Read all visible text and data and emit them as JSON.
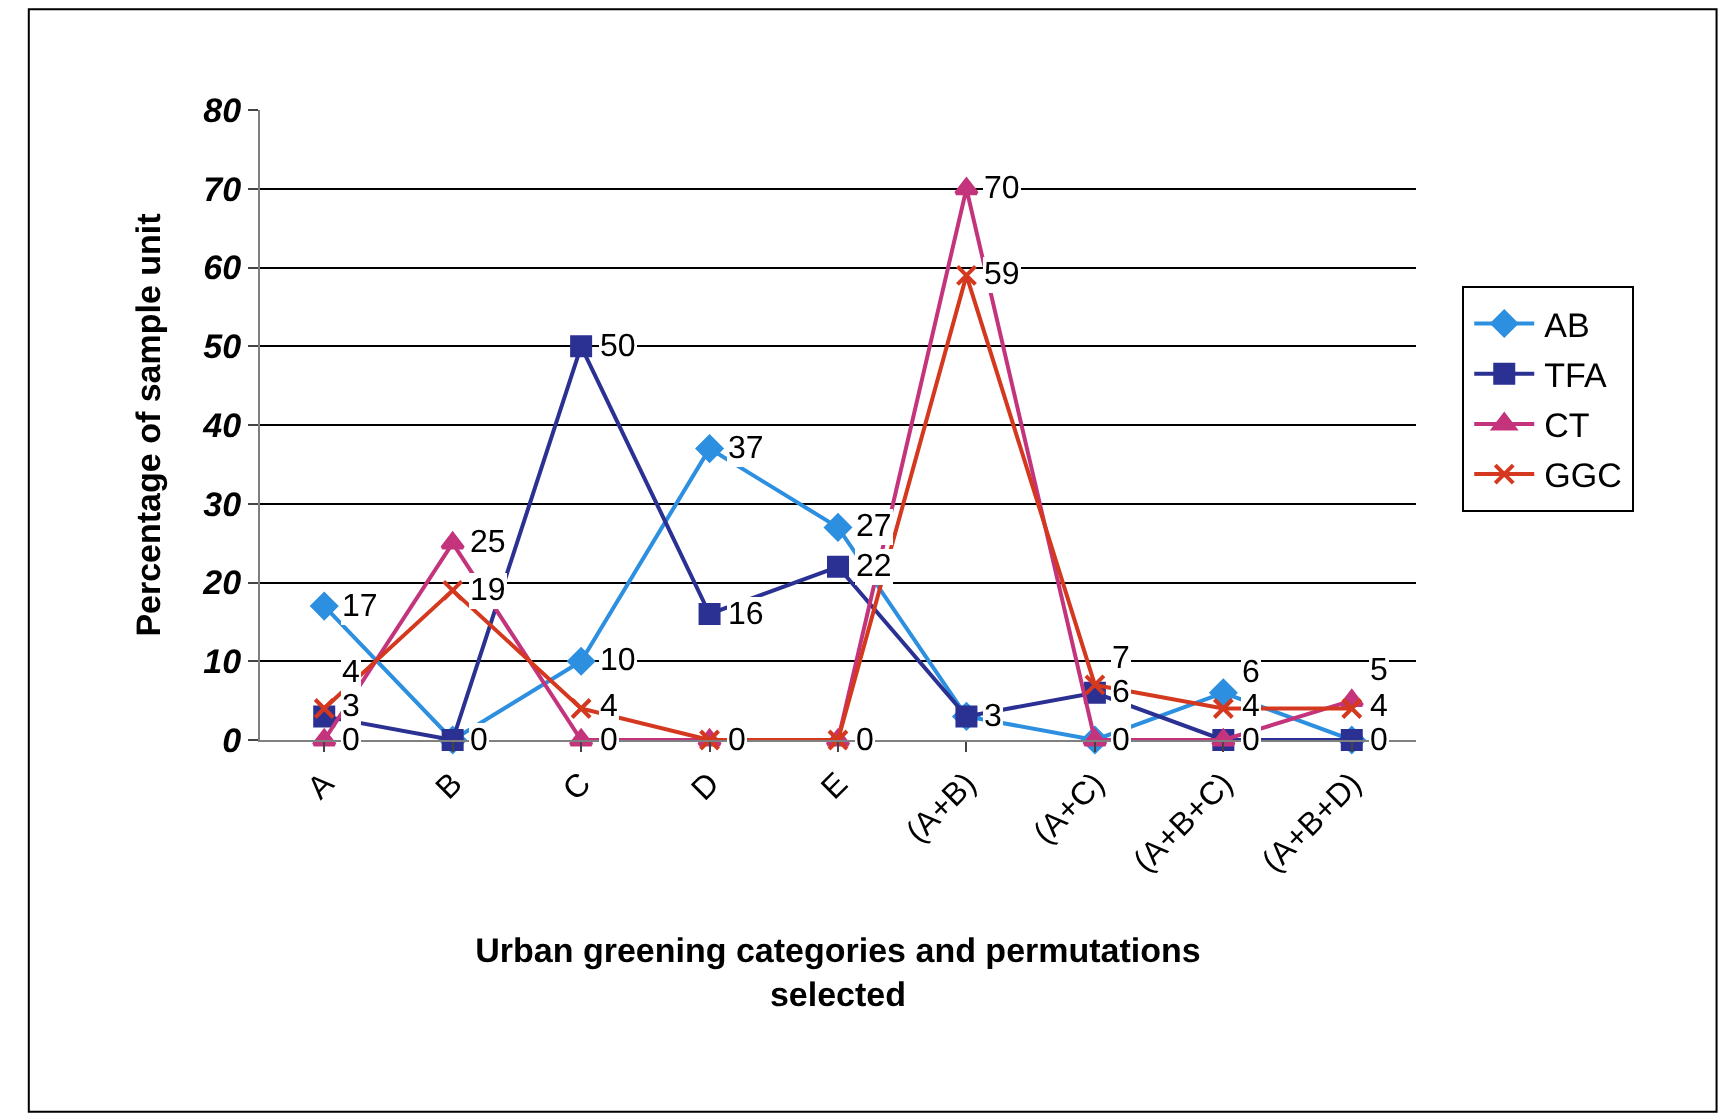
{
  "chart_data": {
    "type": "line",
    "xlabel": "Urban greening categories and permutations\nselected",
    "ylabel": "Percentage of sample unit",
    "categories": [
      "A",
      "B",
      "C",
      "D",
      "E",
      "(A+B)",
      "(A+C)",
      "(A+B+C)",
      "(A+B+D)"
    ],
    "series": [
      {
        "name": "AB",
        "color": "#2d8fe0",
        "marker": "diamond",
        "values": [
          17,
          0,
          10,
          37,
          27,
          3,
          0,
          6,
          0
        ],
        "value_labels": [
          "17",
          "0",
          "10",
          "37",
          "27",
          "3",
          "0",
          "6",
          "0"
        ]
      },
      {
        "name": "TFA",
        "color": "#2b3192",
        "marker": "square",
        "values": [
          3,
          0,
          50,
          16,
          22,
          3,
          6,
          0,
          0
        ],
        "value_labels": [
          "3",
          null,
          "50",
          "16",
          "22",
          null,
          "6",
          "0",
          null
        ]
      },
      {
        "name": "CT",
        "color": "#c4347c",
        "marker": "triangle",
        "values": [
          0,
          25,
          0,
          0,
          0,
          70,
          0,
          0,
          5
        ],
        "value_labels": [
          "0",
          "25",
          "0",
          "0",
          "0",
          "70",
          null,
          null,
          "5"
        ]
      },
      {
        "name": "GGC",
        "color": "#d4381e",
        "marker": "cross",
        "values": [
          4,
          19,
          4,
          0,
          0,
          59,
          7,
          4,
          4
        ],
        "value_labels": [
          "4",
          "19",
          "4",
          null,
          null,
          "59",
          "7",
          "4",
          "4"
        ]
      }
    ],
    "ylim": [
      0,
      80
    ],
    "yticks": [
      0,
      10,
      20,
      30,
      40,
      50,
      60,
      70,
      80
    ],
    "grid": "y",
    "legend": "right"
  }
}
